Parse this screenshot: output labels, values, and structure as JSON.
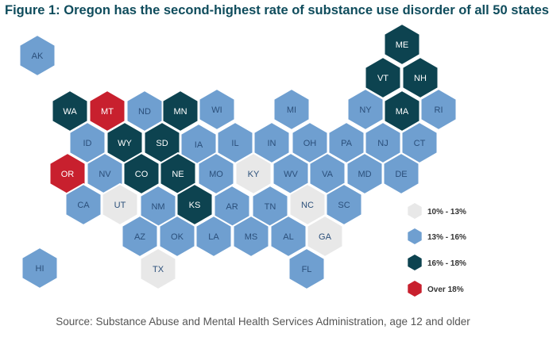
{
  "title": "Figure 1: Oregon has the second-highest rate of substance use disorder of all 50 states",
  "source": "Source: Substance Abuse and Mental Health Services Administration, age 12 and older",
  "colors": {
    "bin_10_13": "#e8e8e8",
    "bin_13_16": "#6f9fd0",
    "bin_16_18": "#0d4350",
    "bin_over_18": "#c8202e",
    "label_dark": "#2b4f7a",
    "label_light": "#ffffff"
  },
  "legend": [
    {
      "label": "10% - 13%",
      "bin": "bin_10_13"
    },
    {
      "label": "13% - 16%",
      "bin": "bin_13_16"
    },
    {
      "label": "16% - 18%",
      "bin": "bin_16_18"
    },
    {
      "label": "Over 18%",
      "bin": "bin_over_18"
    }
  ],
  "states": [
    {
      "abbr": "AK",
      "bin": "bin_13_16"
    },
    {
      "abbr": "ME",
      "bin": "bin_16_18"
    },
    {
      "abbr": "VT",
      "bin": "bin_16_18"
    },
    {
      "abbr": "NH",
      "bin": "bin_16_18"
    },
    {
      "abbr": "WA",
      "bin": "bin_16_18"
    },
    {
      "abbr": "MT",
      "bin": "bin_over_18"
    },
    {
      "abbr": "ND",
      "bin": "bin_13_16"
    },
    {
      "abbr": "MN",
      "bin": "bin_16_18"
    },
    {
      "abbr": "WI",
      "bin": "bin_13_16"
    },
    {
      "abbr": "MI",
      "bin": "bin_13_16"
    },
    {
      "abbr": "NY",
      "bin": "bin_13_16"
    },
    {
      "abbr": "MA",
      "bin": "bin_16_18"
    },
    {
      "abbr": "RI",
      "bin": "bin_13_16"
    },
    {
      "abbr": "ID",
      "bin": "bin_13_16"
    },
    {
      "abbr": "WY",
      "bin": "bin_16_18"
    },
    {
      "abbr": "SD",
      "bin": "bin_16_18"
    },
    {
      "abbr": "IA",
      "bin": "bin_13_16"
    },
    {
      "abbr": "IL",
      "bin": "bin_13_16"
    },
    {
      "abbr": "IN",
      "bin": "bin_13_16"
    },
    {
      "abbr": "OH",
      "bin": "bin_13_16"
    },
    {
      "abbr": "PA",
      "bin": "bin_13_16"
    },
    {
      "abbr": "NJ",
      "bin": "bin_13_16"
    },
    {
      "abbr": "CT",
      "bin": "bin_13_16"
    },
    {
      "abbr": "OR",
      "bin": "bin_over_18"
    },
    {
      "abbr": "NV",
      "bin": "bin_13_16"
    },
    {
      "abbr": "CO",
      "bin": "bin_16_18"
    },
    {
      "abbr": "NE",
      "bin": "bin_16_18"
    },
    {
      "abbr": "MO",
      "bin": "bin_13_16"
    },
    {
      "abbr": "KY",
      "bin": "bin_10_13"
    },
    {
      "abbr": "WV",
      "bin": "bin_13_16"
    },
    {
      "abbr": "VA",
      "bin": "bin_13_16"
    },
    {
      "abbr": "MD",
      "bin": "bin_13_16"
    },
    {
      "abbr": "DE",
      "bin": "bin_13_16"
    },
    {
      "abbr": "CA",
      "bin": "bin_13_16"
    },
    {
      "abbr": "UT",
      "bin": "bin_10_13"
    },
    {
      "abbr": "NM",
      "bin": "bin_13_16"
    },
    {
      "abbr": "KS",
      "bin": "bin_16_18"
    },
    {
      "abbr": "AR",
      "bin": "bin_13_16"
    },
    {
      "abbr": "TN",
      "bin": "bin_13_16"
    },
    {
      "abbr": "NC",
      "bin": "bin_10_13"
    },
    {
      "abbr": "SC",
      "bin": "bin_13_16"
    },
    {
      "abbr": "AZ",
      "bin": "bin_13_16"
    },
    {
      "abbr": "OK",
      "bin": "bin_13_16"
    },
    {
      "abbr": "LA",
      "bin": "bin_13_16"
    },
    {
      "abbr": "MS",
      "bin": "bin_13_16"
    },
    {
      "abbr": "AL",
      "bin": "bin_13_16"
    },
    {
      "abbr": "GA",
      "bin": "bin_10_13"
    },
    {
      "abbr": "HI",
      "bin": "bin_13_16"
    },
    {
      "abbr": "TX",
      "bin": "bin_10_13"
    },
    {
      "abbr": "FL",
      "bin": "bin_13_16"
    }
  ]
}
